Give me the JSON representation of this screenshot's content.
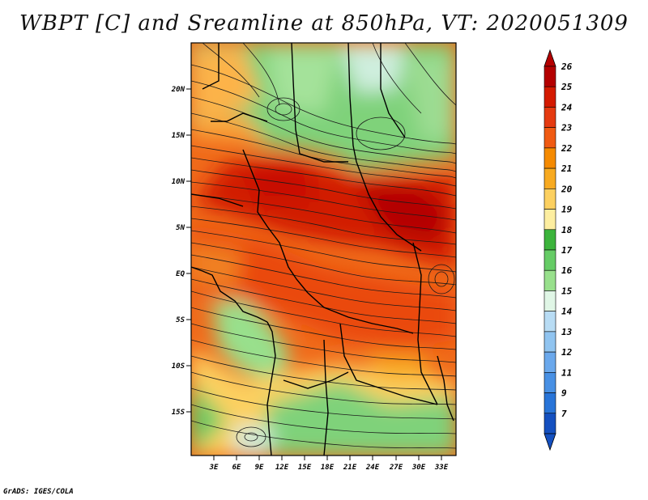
{
  "title": "WBPT [C] and Sreamline at 850hPa, VT: 2020051309",
  "footer": "GrADS: IGES/COLA",
  "map": {
    "lat_labels": [
      "20N",
      "15N",
      "10N",
      "5N",
      "EQ",
      "5S",
      "10S",
      "15S"
    ],
    "lon_labels": [
      "3E",
      "6E",
      "9E",
      "12E",
      "15E",
      "18E",
      "21E",
      "24E",
      "27E",
      "30E",
      "33E"
    ]
  },
  "colorbar": {
    "labels": [
      "26",
      "25",
      "24",
      "23",
      "22",
      "21",
      "20",
      "19",
      "18",
      "17",
      "16",
      "15",
      "14",
      "13",
      "12",
      "11",
      "9",
      "7"
    ],
    "colors": [
      "#b40000",
      "#d41a00",
      "#e53a10",
      "#f05a12",
      "#f58a00",
      "#f8aa20",
      "#fcd060",
      "#fdeea0",
      "#3cb43c",
      "#66cc66",
      "#98e08c",
      "#e0f6e6",
      "#b8dcf4",
      "#90c4f0",
      "#6aa8ec",
      "#4890e4",
      "#2874d8",
      "#1450c0"
    ]
  }
}
